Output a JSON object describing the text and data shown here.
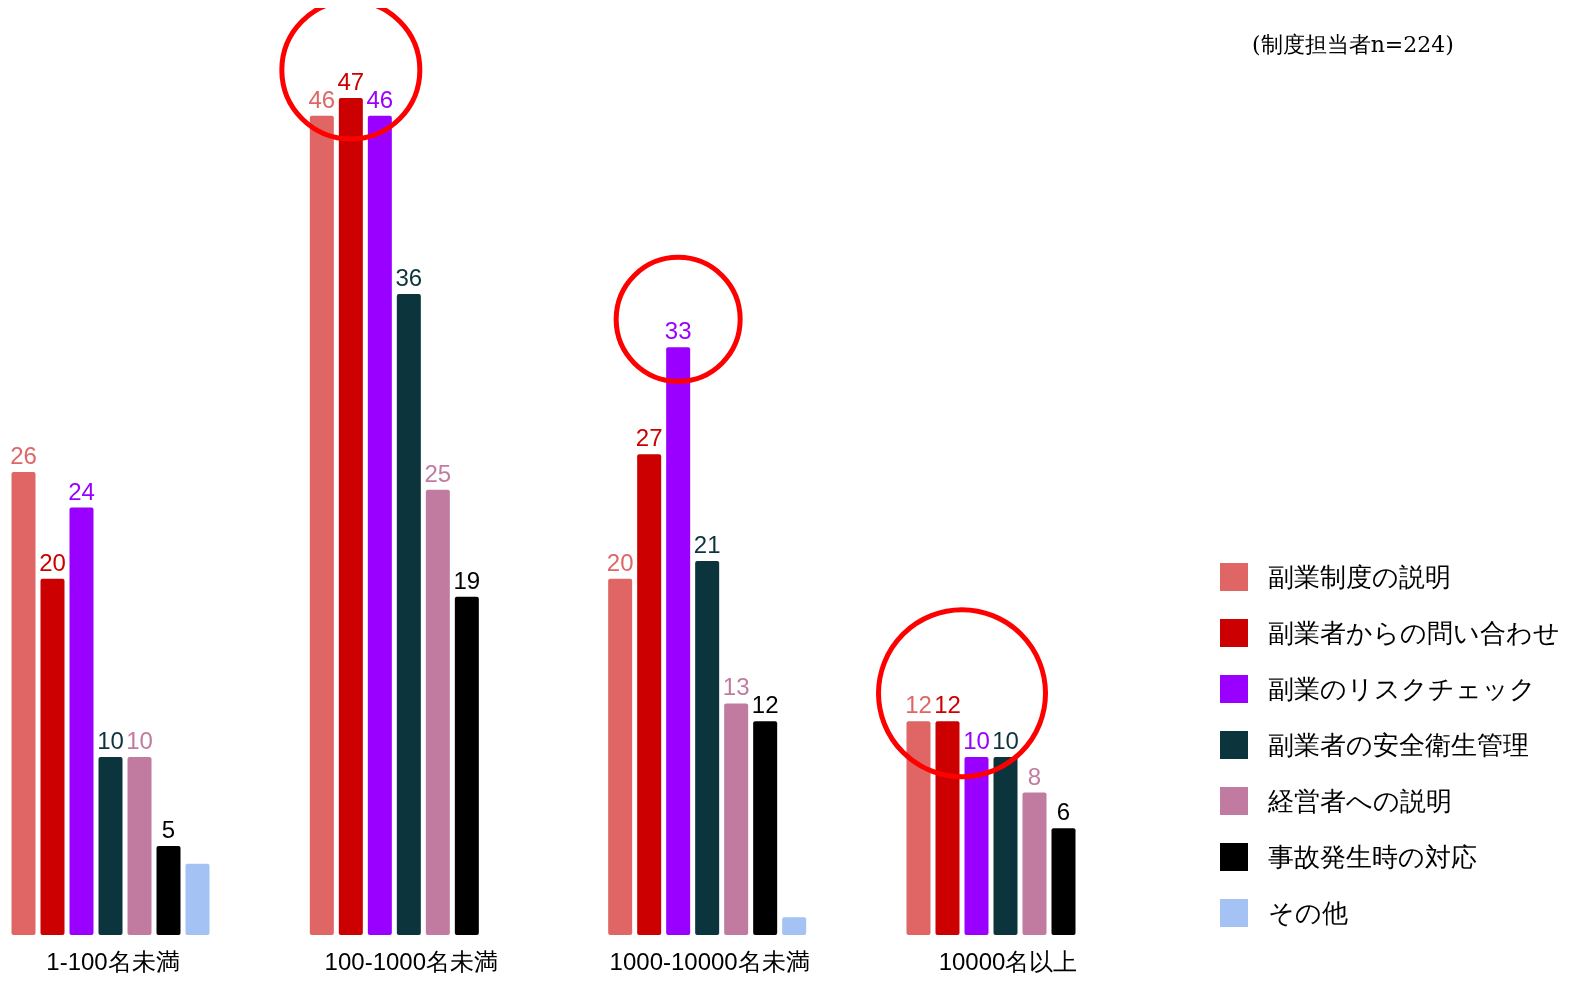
{
  "chart_data": {
    "type": "bar",
    "categories": [
      "1-100名未満",
      "100-1000名未満",
      "1000-10000名未満",
      "10000名以上"
    ],
    "series": [
      {
        "name": "副業制度の説明",
        "color": "#e06666",
        "values": [
          26,
          46,
          20,
          12
        ],
        "value_labels": [
          "26",
          "46",
          "20",
          "12"
        ]
      },
      {
        "name": "副業者からの問い合わせ",
        "color": "#cc0000",
        "values": [
          20,
          47,
          27,
          12
        ],
        "value_labels": [
          "20",
          "47",
          "27",
          "12"
        ]
      },
      {
        "name": "副業のリスクチェック",
        "color": "#9900ff",
        "values": [
          24,
          46,
          33,
          10
        ],
        "value_labels": [
          "24",
          "46",
          "33",
          "10"
        ]
      },
      {
        "name": "副業者の安全衛生管理",
        "color": "#0c343d",
        "values": [
          10,
          36,
          21,
          10
        ],
        "value_labels": [
          "10",
          "36",
          "21",
          "10"
        ]
      },
      {
        "name": "経営者への説明",
        "color": "#c27ba0",
        "values": [
          10,
          25,
          13,
          8
        ],
        "value_labels": [
          "10",
          "25",
          "13",
          "8"
        ]
      },
      {
        "name": "事故発生時の対応",
        "color": "#000000",
        "values": [
          5,
          19,
          12,
          6
        ],
        "value_labels": [
          "5",
          "19",
          "12",
          "6"
        ]
      },
      {
        "name": "その他",
        "color": "#a4c2f4",
        "values": [
          4,
          null,
          1,
          null
        ],
        "value_labels": [
          null,
          null,
          null,
          null
        ]
      }
    ],
    "annotations": [
      "(制度担当者n=224)"
    ],
    "legend": "right"
  }
}
